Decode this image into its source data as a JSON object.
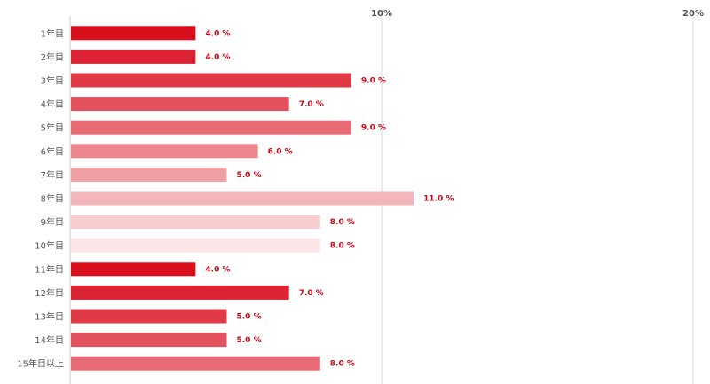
{
  "chart_data": {
    "type": "bar",
    "orientation": "horizontal",
    "categories": [
      "1年目",
      "2年目",
      "3年目",
      "4年目",
      "5年目",
      "6年目",
      "7年目",
      "8年目",
      "9年目",
      "10年目",
      "11年目",
      "12年目",
      "13年目",
      "14年目",
      "15年目以上"
    ],
    "values": [
      4.0,
      4.0,
      9.0,
      7.0,
      9.0,
      6.0,
      5.0,
      11.0,
      8.0,
      8.0,
      4.0,
      7.0,
      5.0,
      5.0,
      8.0
    ],
    "value_labels": [
      "4.0 %",
      "4.0 %",
      "9.0 %",
      "7.0 %",
      "9.0 %",
      "6.0 %",
      "5.0 %",
      "11.0 %",
      "8.0 %",
      "8.0 %",
      "4.0 %",
      "7.0 %",
      "5.0 %",
      "5.0 %",
      "8.0 %"
    ],
    "bar_colors": [
      "#d90f1d",
      "#db2333",
      "#e03a47",
      "#e4525d",
      "#e86c75",
      "#ec868c",
      "#f09fa4",
      "#f3b6ba",
      "#f7cdd0",
      "#fbe5e6",
      "#d90f1d",
      "#db2333",
      "#e03a47",
      "#e4525d",
      "#e86c75"
    ],
    "xlim": [
      0,
      20
    ],
    "x_ticks": [
      10,
      20
    ],
    "x_tick_labels": [
      "10%",
      "20%"
    ],
    "grid": true,
    "title": "",
    "xlabel": "",
    "ylabel": ""
  }
}
